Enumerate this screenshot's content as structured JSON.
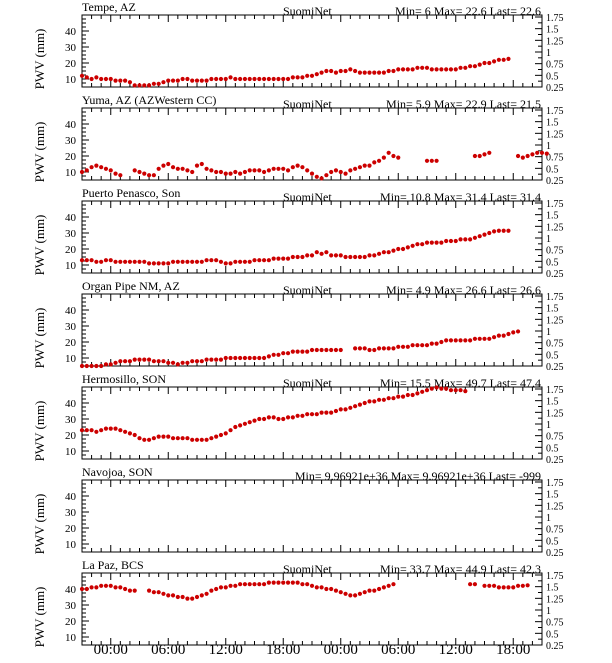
{
  "ylabel": "PWV (mm)",
  "left_ticks": [
    "10",
    "20",
    "30",
    "40"
  ],
  "right_ticks": [
    "0.25",
    "0.5",
    "0.75",
    "1",
    "1.25",
    "1.5",
    "1.75"
  ],
  "time_ticks": [
    "00:00",
    "06:00",
    "12:00",
    "18:00",
    "00:00",
    "06:00",
    "12:00",
    "18:00"
  ],
  "colors": {
    "points": "#cc0000",
    "axes": "#000000"
  },
  "chart_data": [
    {
      "type": "scatter",
      "title": "Tempe, AZ",
      "source": "SuomiNet",
      "stats": "Min= 6 Max= 22.6 Last= 22.6",
      "ylim": [
        5,
        50
      ],
      "right_ylim": [
        0.25,
        1.75
      ],
      "series": [
        {
          "segments": [
            {
              "x0": 0,
              "dx": 0.5,
              "values": [
                12,
                11,
                10,
                11,
                10,
                10,
                10,
                9,
                9,
                9,
                8,
                6,
                6,
                6,
                6,
                7,
                7,
                8,
                9,
                9,
                9,
                10,
                10,
                9,
                9,
                9,
                9,
                10,
                10,
                10,
                10,
                11,
                10,
                10,
                10,
                10,
                10,
                10,
                10,
                10,
                10,
                10,
                10,
                10,
                11,
                11,
                11,
                12,
                12,
                13,
                14,
                15,
                15,
                14,
                15,
                15,
                16,
                15,
                14,
                14,
                14,
                14,
                14,
                14,
                15,
                15,
                16,
                16,
                16,
                16,
                17,
                17,
                17,
                16,
                16,
                16,
                16,
                16,
                16,
                17,
                17,
                18,
                18,
                19,
                20,
                20,
                21,
                22,
                22,
                22.6
              ]
            }
          ]
        }
      ]
    },
    {
      "type": "scatter",
      "title": "Yuma, AZ (AZWestern CC)",
      "source": "SuomiNet",
      "stats": "Min= 5.9 Max= 22.9 Last= 21.5",
      "ylim": [
        5,
        50
      ],
      "right_ylim": [
        0.25,
        1.75
      ],
      "series": [
        {
          "segments": [
            {
              "x0": 0,
              "dx": 0.5,
              "values": [
                10,
                11,
                13,
                14,
                13,
                12,
                11,
                9,
                8
              ]
            },
            {
              "x0": 5.5,
              "dx": 0.5,
              "values": [
                11,
                10,
                9,
                8,
                8,
                12,
                14,
                15,
                13,
                12,
                12,
                11,
                10,
                14,
                15,
                12,
                11,
                10,
                10,
                9,
                9,
                10,
                9,
                10,
                11,
                11,
                11,
                10,
                11,
                12,
                12,
                12,
                11,
                13,
                14,
                13,
                11,
                9,
                7,
                6,
                8,
                10,
                11,
                10,
                9,
                11,
                12,
                13,
                14,
                14,
                16,
                17,
                19,
                22,
                20,
                19
              ]
            },
            {
              "x0": 36,
              "dx": 0.5,
              "values": [
                17,
                17,
                17
              ]
            },
            {
              "x0": 41,
              "dx": 0.5,
              "values": [
                20,
                20,
                21,
                22
              ]
            },
            {
              "x0": 45.5,
              "dx": 0.5,
              "values": [
                20,
                19,
                20,
                21,
                22,
                22,
                21.5
              ]
            }
          ]
        }
      ]
    },
    {
      "type": "scatter",
      "title": "Puerto Penasco, Son",
      "source": "SuomiNet",
      "stats": "Min= 10.8 Max= 31.4 Last= 31.4",
      "ylim": [
        5,
        50
      ],
      "right_ylim": [
        0.25,
        1.75
      ],
      "series": [
        {
          "segments": [
            {
              "x0": 0,
              "dx": 0.5,
              "values": [
                13,
                13,
                13,
                12,
                12,
                13,
                13,
                12,
                12,
                12,
                12,
                12,
                12,
                12,
                11,
                11,
                11,
                11,
                11,
                12,
                12,
                12,
                12,
                12,
                12,
                12,
                13,
                13,
                13,
                12,
                11,
                11,
                12,
                12,
                12,
                12,
                13,
                13,
                13,
                13,
                14,
                14,
                14,
                14,
                15,
                15,
                15,
                16,
                16,
                18,
                17,
                18,
                16,
                16,
                16,
                15,
                15,
                15,
                15,
                15,
                16,
                16,
                17,
                18,
                18,
                19,
                20,
                20,
                21,
                22,
                23,
                23,
                24,
                24,
                24,
                24,
                25,
                25,
                25,
                26,
                26,
                26,
                27,
                28,
                29,
                30,
                31,
                31.4,
                31.4,
                31.4
              ]
            }
          ]
        }
      ]
    },
    {
      "type": "scatter",
      "title": "Organ Pipe NM, AZ",
      "source": "SuomiNet",
      "stats": "Min= 4.9 Max= 26.6 Last= 26.6",
      "ylim": [
        5,
        50
      ],
      "right_ylim": [
        0.25,
        1.75
      ],
      "series": [
        {
          "segments": [
            {
              "x0": 0,
              "dx": 0.5,
              "values": [
                5,
                5,
                5,
                5,
                5,
                6,
                6,
                7,
                8,
                8,
                8,
                9,
                9,
                9,
                9,
                8,
                8,
                8,
                7,
                7,
                6,
                7,
                7,
                8,
                8,
                8,
                9,
                9,
                9,
                9,
                10,
                10,
                10,
                10,
                10,
                10,
                10,
                10,
                10,
                11,
                12,
                12,
                13,
                13,
                14,
                14,
                14,
                14,
                15,
                15,
                15,
                15,
                15,
                15,
                15
              ]
            },
            {
              "x0": 28.5,
              "dx": 0.5,
              "values": [
                16,
                16,
                16,
                15,
                15,
                16,
                16,
                16,
                16,
                17,
                17,
                17,
                18,
                18,
                18,
                18,
                19,
                19,
                20,
                21,
                21,
                21,
                21,
                21,
                21,
                22,
                22,
                22,
                22,
                23,
                24,
                24,
                25,
                26,
                26.6
              ]
            }
          ]
        }
      ]
    },
    {
      "type": "scatter",
      "title": "Hermosillo, SON",
      "source": "SuomiNet",
      "stats": "Min= 15.5 Max= 49.7 Last= 47.4",
      "ylim": [
        5,
        50
      ],
      "right_ylim": [
        0.25,
        1.75
      ],
      "series": [
        {
          "segments": [
            {
              "x0": 0,
              "dx": 0.5,
              "values": [
                23,
                23,
                23,
                22,
                23,
                24,
                24,
                24,
                23,
                22,
                21,
                20,
                18,
                17,
                17,
                18,
                19,
                19,
                19,
                18,
                18,
                18,
                18,
                17,
                17,
                17,
                17,
                18,
                19,
                20,
                21,
                23,
                25,
                26,
                27,
                28,
                29,
                30,
                30,
                31,
                31,
                30,
                30,
                31,
                31,
                32,
                32,
                33,
                33,
                33,
                34,
                34,
                34,
                35,
                36,
                36,
                37,
                38,
                39,
                40,
                41,
                41,
                42,
                42,
                43,
                43,
                44,
                44,
                45,
                45,
                46,
                47,
                48,
                49,
                49.7,
                49,
                49,
                48,
                48,
                48,
                47.4
              ]
            }
          ]
        }
      ]
    },
    {
      "type": "scatter",
      "title": "Navojoa, SON",
      "source": "",
      "stats": "Min= 9.96921e+36 Max= 9.96921e+36 Last= -999",
      "ylim": [
        5,
        50
      ],
      "right_ylim": [
        0.25,
        1.75
      ],
      "series": [
        {
          "segments": []
        }
      ]
    },
    {
      "type": "scatter",
      "title": "La Paz, BCS",
      "source": "SuomiNet",
      "stats": "Min= 33.7 Max= 44.9 Last= 42.3",
      "ylim": [
        5,
        50
      ],
      "right_ylim": [
        0.25,
        1.75
      ],
      "series": [
        {
          "segments": [
            {
              "x0": 0,
              "dx": 0.5,
              "values": [
                40,
                40,
                41,
                41,
                42,
                42,
                42,
                41,
                41,
                40,
                39,
                39
              ]
            },
            {
              "x0": 7,
              "dx": 0.5,
              "values": [
                39,
                38,
                38,
                37,
                36,
                36,
                35,
                35,
                34,
                34,
                35,
                36,
                37,
                39,
                40,
                41,
                41,
                42,
                42,
                43,
                43,
                43,
                43,
                43,
                43,
                44,
                44,
                44,
                44,
                44,
                44,
                44,
                43,
                43,
                42,
                41,
                41,
                40,
                40,
                39,
                38,
                37,
                36,
                36,
                37,
                38,
                39,
                39,
                40,
                41,
                42,
                43
              ]
            },
            {
              "x0": 40.5,
              "dx": 0.5,
              "values": [
                43,
                43
              ]
            },
            {
              "x0": 42,
              "dx": 0.5,
              "values": [
                42,
                42,
                42,
                41,
                41,
                41,
                41,
                42,
                42,
                42.3
              ]
            }
          ]
        }
      ]
    }
  ]
}
